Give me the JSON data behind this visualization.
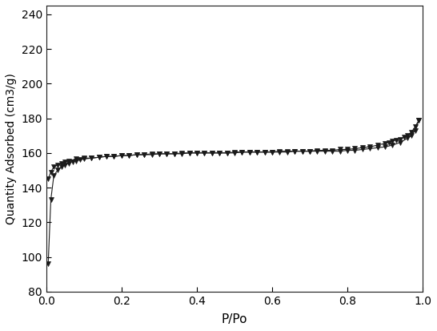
{
  "xlabel": "P/Po",
  "ylabel": "Quantity Adsorbed (cm3/g)",
  "xlim": [
    0.0,
    1.0
  ],
  "ylim": [
    80,
    245
  ],
  "yticks": [
    80,
    100,
    120,
    140,
    160,
    180,
    200,
    220,
    240
  ],
  "xticks": [
    0.0,
    0.2,
    0.4,
    0.6,
    0.8,
    1.0
  ],
  "line_color": "#1a1a1a",
  "marker": "v",
  "marker_color": "#1a1a1a",
  "marker_size": 4,
  "adsorption_x": [
    0.005,
    0.012,
    0.02,
    0.03,
    0.04,
    0.05,
    0.06,
    0.07,
    0.08,
    0.09,
    0.1,
    0.12,
    0.14,
    0.16,
    0.18,
    0.2,
    0.22,
    0.24,
    0.26,
    0.28,
    0.3,
    0.32,
    0.34,
    0.36,
    0.38,
    0.4,
    0.42,
    0.44,
    0.46,
    0.48,
    0.5,
    0.52,
    0.54,
    0.56,
    0.58,
    0.6,
    0.62,
    0.64,
    0.66,
    0.68,
    0.7,
    0.72,
    0.74,
    0.76,
    0.78,
    0.8,
    0.82,
    0.84,
    0.86,
    0.88,
    0.9,
    0.92,
    0.94,
    0.96,
    0.97,
    0.98,
    0.99
  ],
  "adsorption_y": [
    96,
    133,
    147,
    150,
    152,
    153,
    154,
    155,
    155.5,
    156,
    156.5,
    157,
    157.5,
    158,
    158,
    158.5,
    158.5,
    159,
    159,
    159.5,
    159.5,
    159.5,
    159.5,
    160,
    160,
    160,
    160,
    160,
    160,
    160,
    160,
    160.5,
    160.5,
    160.5,
    160.5,
    160.5,
    160.5,
    160.5,
    161,
    161,
    161,
    161,
    161,
    161,
    161,
    161.5,
    161.5,
    162,
    162.5,
    163,
    163.5,
    164.5,
    166,
    168.5,
    170,
    173,
    179
  ],
  "desorption_x": [
    0.99,
    0.98,
    0.97,
    0.96,
    0.95,
    0.94,
    0.93,
    0.92,
    0.91,
    0.9,
    0.88,
    0.86,
    0.84,
    0.82,
    0.8,
    0.78,
    0.76,
    0.74,
    0.72,
    0.7,
    0.68,
    0.66,
    0.64,
    0.62,
    0.6,
    0.58,
    0.56,
    0.54,
    0.52,
    0.5,
    0.48,
    0.46,
    0.44,
    0.42,
    0.4,
    0.38,
    0.36,
    0.34,
    0.32,
    0.3,
    0.28,
    0.26,
    0.24,
    0.22,
    0.2,
    0.18,
    0.16,
    0.14,
    0.12,
    0.1,
    0.08,
    0.06,
    0.05,
    0.04,
    0.03,
    0.02,
    0.012,
    0.005
  ],
  "desorption_y": [
    179,
    175,
    172,
    170,
    169,
    168,
    167.5,
    167,
    166,
    165.5,
    164.5,
    163.5,
    163,
    162.5,
    162,
    162,
    161.5,
    161.5,
    161.5,
    161,
    161,
    161,
    161,
    161,
    160.5,
    160.5,
    160.5,
    160.5,
    160.5,
    160.5,
    160,
    160,
    160,
    160,
    160,
    160,
    159.5,
    159.5,
    159.5,
    159.5,
    159,
    159,
    159,
    158.5,
    158.5,
    158,
    158,
    157.5,
    157,
    157,
    156.5,
    155.5,
    155,
    154,
    153,
    152,
    149,
    145
  ],
  "figsize": [
    5.46,
    4.13
  ],
  "dpi": 100
}
